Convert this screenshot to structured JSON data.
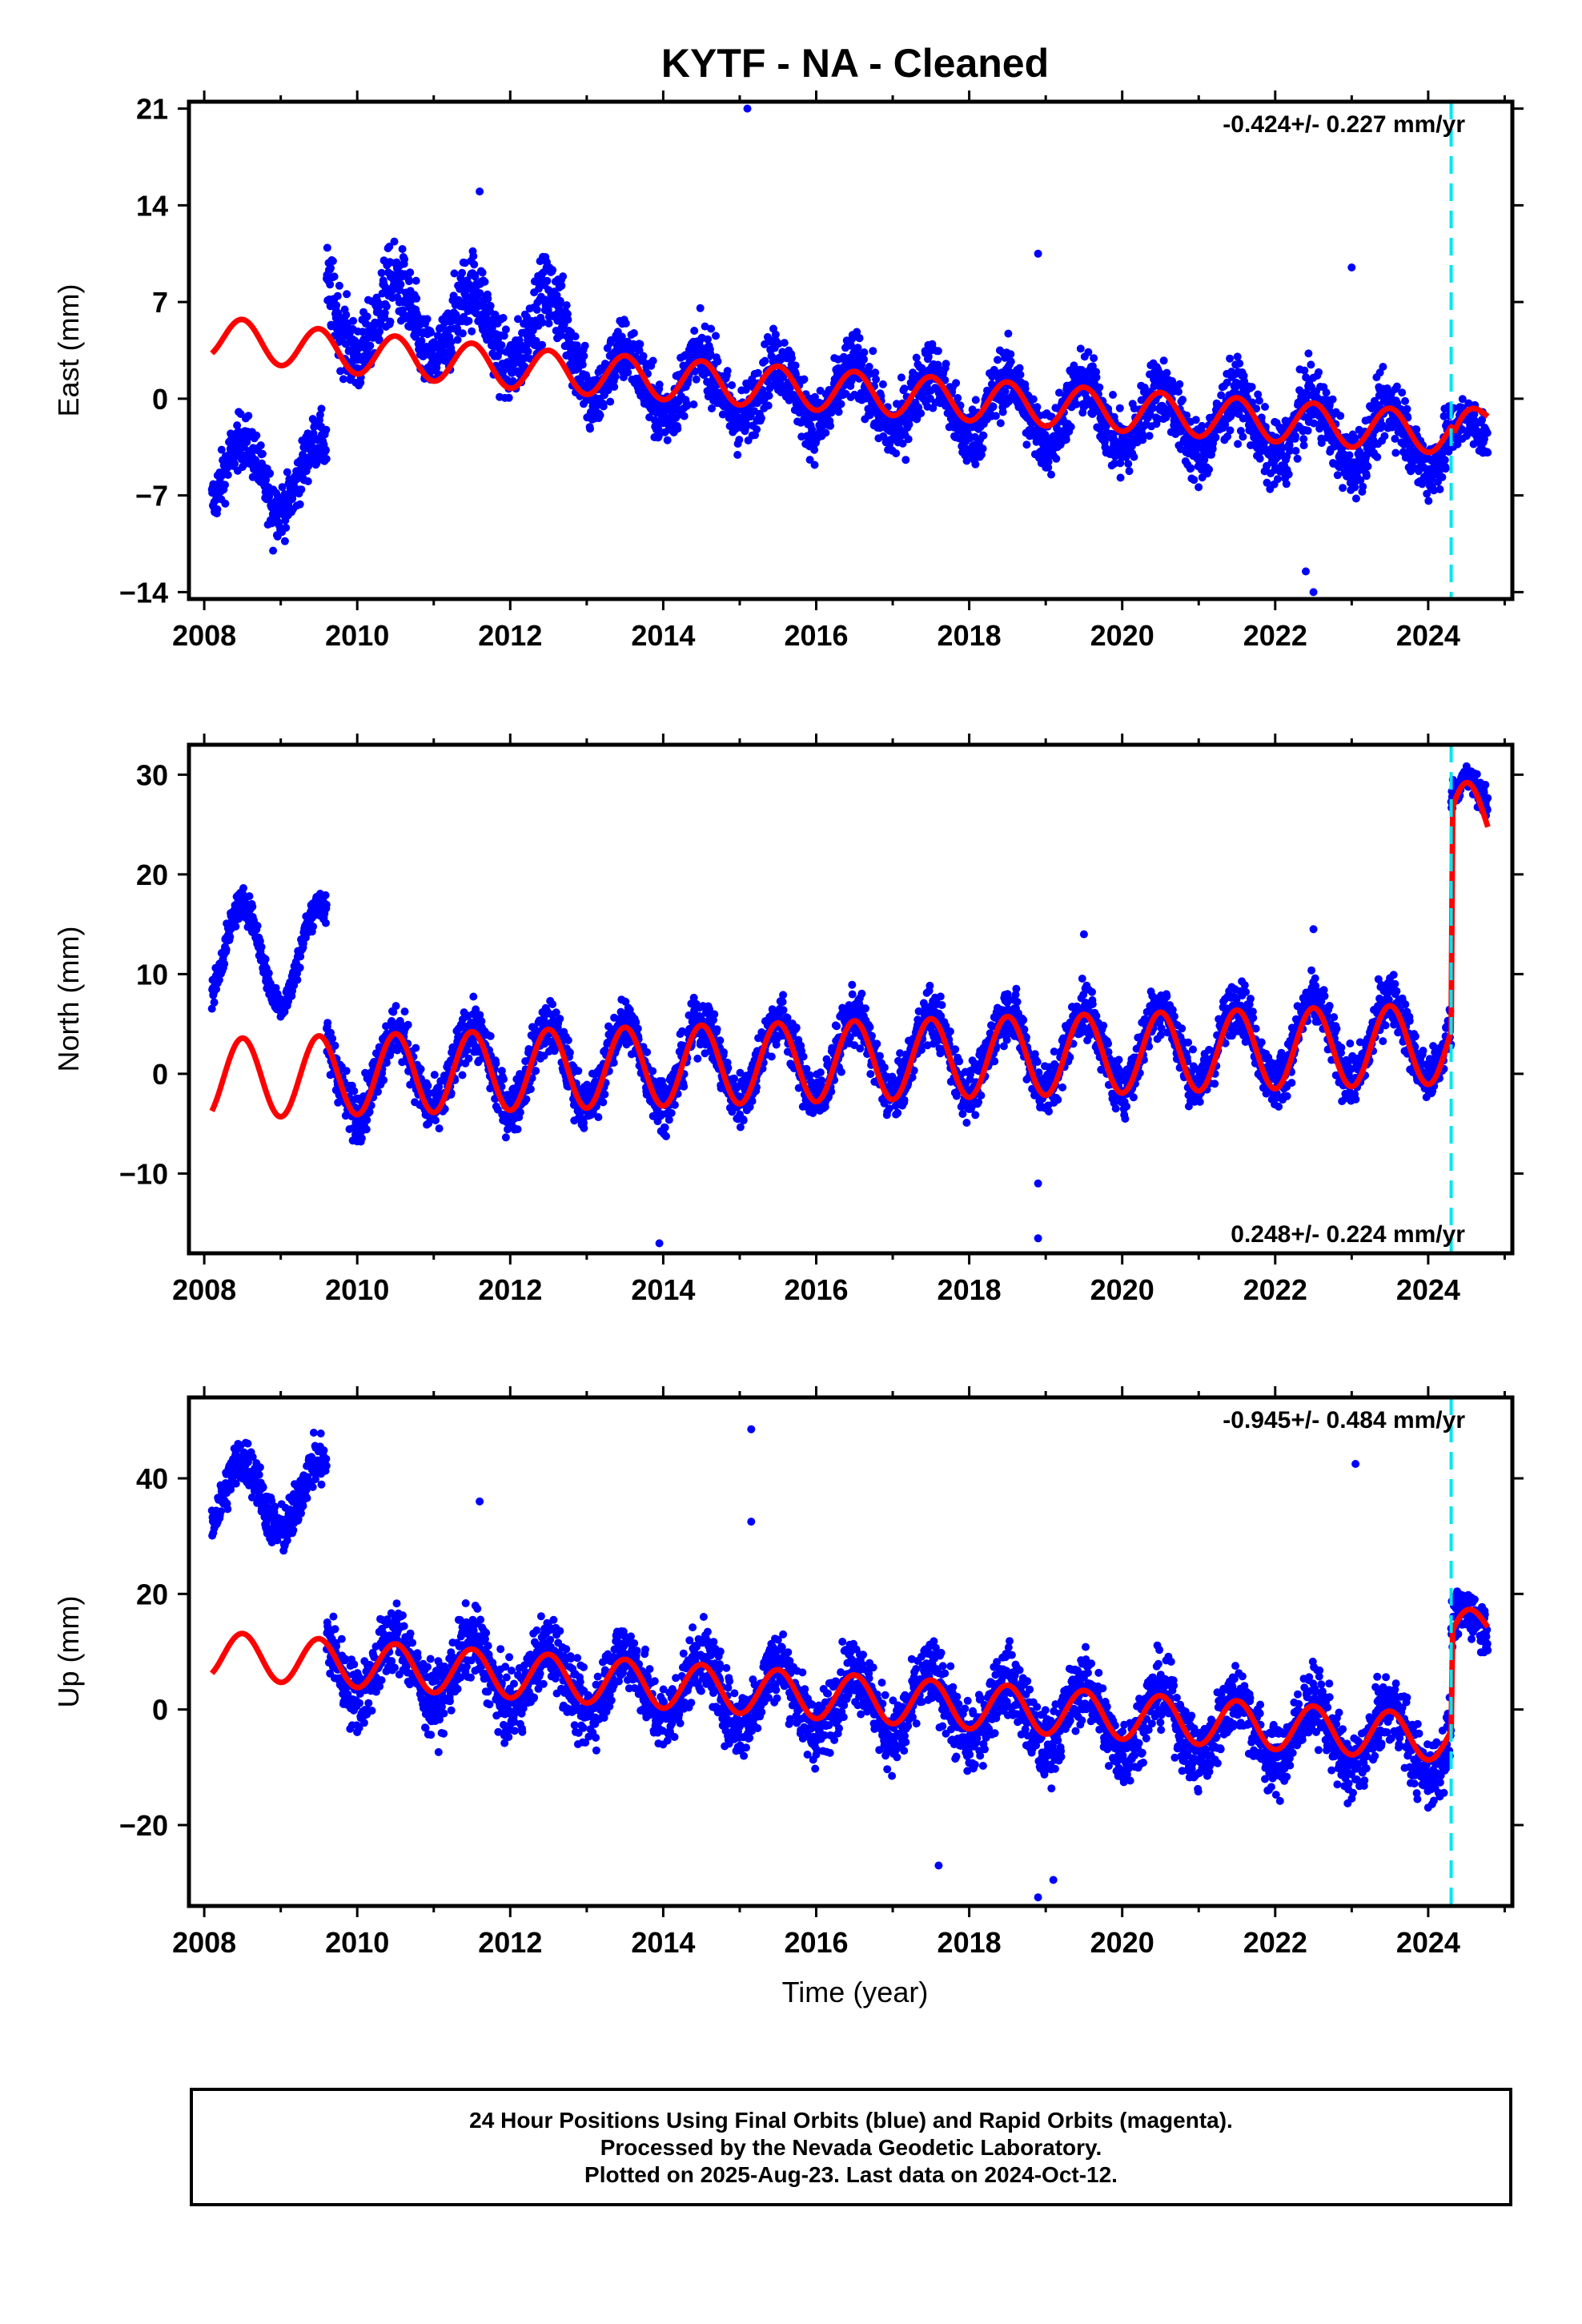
{
  "title": "KYTF  - NA - Cleaned",
  "colors": {
    "data": "#0000ff",
    "model": "#ff0000",
    "event_line": "#00e5ee",
    "frame": "#000000"
  },
  "footer": {
    "line1": "24 Hour Positions Using Final Orbits (blue) and Rapid Orbits (magenta).",
    "line2": "Processed by the Nevada Geodetic Laboratory.",
    "line3": "Plotted on 2025-Aug-23. Last data on 2024-Oct-12."
  },
  "chart_data": [
    {
      "type": "scatter",
      "component": "East",
      "ylabel": "East (mm)",
      "xlabel": "",
      "xlim": [
        2007.8,
        2025.1
      ],
      "ylim": [
        -14.5,
        21.5
      ],
      "xticks": [
        2008,
        2010,
        2012,
        2014,
        2016,
        2018,
        2020,
        2022,
        2024
      ],
      "xtick_labels": [
        "2008",
        "2010",
        "2012",
        "2014",
        "2016",
        "2018",
        "2020",
        "2022",
        "2024"
      ],
      "yticks": [
        -14,
        -7,
        0,
        7,
        14,
        21
      ],
      "ytick_labels": [
        "−14",
        "−7",
        "0",
        "7",
        "14",
        "21"
      ],
      "rate_text": "-0.424+/- 0.227 mm/yr",
      "rate_position": "top-right",
      "event_line_x": 2024.3,
      "data_start": 2008.1,
      "data_end": 2024.78,
      "series": [
        {
          "kind": "points",
          "segments": [
            {
              "from": 2008.1,
              "to": 2009.6,
              "base": -5.5,
              "slope": 0,
              "amp": 2.5,
              "noise": 1.6
            },
            {
              "from": 2009.6,
              "to": 2013.0,
              "base": 6.0,
              "slope": -0.4,
              "amp": 2.8,
              "noise": 2.3
            },
            {
              "from": 2013.0,
              "to": 2024.3,
              "base": 1.5,
              "slope": -0.4,
              "amp": 2.2,
              "noise": 2.0
            },
            {
              "from": 2024.3,
              "to": 2024.78,
              "base": -3.0,
              "slope": 0,
              "amp": 1.5,
              "noise": 1.5
            }
          ],
          "outliers": [
            [
              2015.1,
              21.0
            ],
            [
              2011.6,
              15.0
            ],
            [
              2018.9,
              10.5
            ],
            [
              2023.0,
              9.5
            ],
            [
              2022.5,
              -14.0
            ],
            [
              2008.9,
              -11.0
            ],
            [
              2022.4,
              -12.5
            ]
          ]
        },
        {
          "kind": "model",
          "points": [
            [
              2008.1,
              4.5
            ],
            [
              2009.6,
              3.5
            ],
            [
              2012.5,
              2.0
            ],
            [
              2024.3,
              -2.5
            ],
            [
              2024.35,
              -3.2
            ],
            [
              2024.78,
              -1.0
            ]
          ],
          "amp": 1.5
        }
      ]
    },
    {
      "type": "scatter",
      "component": "North",
      "ylabel": "North (mm)",
      "xlabel": "",
      "xlim": [
        2007.8,
        2025.1
      ],
      "ylim": [
        -18,
        33
      ],
      "xticks": [
        2008,
        2010,
        2012,
        2014,
        2016,
        2018,
        2020,
        2022,
        2024
      ],
      "xtick_labels": [
        "2008",
        "2010",
        "2012",
        "2014",
        "2016",
        "2018",
        "2020",
        "2022",
        "2024"
      ],
      "yticks": [
        -10,
        0,
        10,
        20,
        30
      ],
      "ytick_labels": [
        "−10",
        "0",
        "10",
        "20",
        "30"
      ],
      "rate_text": "0.248+/- 0.224 mm/yr",
      "rate_position": "bottom-right",
      "event_line_x": 2024.3,
      "data_start": 2008.1,
      "data_end": 2024.78,
      "series": [
        {
          "kind": "points",
          "segments": [
            {
              "from": 2008.1,
              "to": 2009.6,
              "base": 12.0,
              "slope": 0,
              "amp": 5.0,
              "noise": 1.2
            },
            {
              "from": 2009.6,
              "to": 2024.3,
              "base": 0.0,
              "slope": 0.25,
              "amp": 4.0,
              "noise": 2.2
            },
            {
              "from": 2024.3,
              "to": 2024.78,
              "base": 27.0,
              "slope": 0,
              "amp": 2.5,
              "noise": 1.2
            }
          ],
          "outliers": [
            [
              2013.95,
              -17.0
            ],
            [
              2018.9,
              -16.5
            ],
            [
              2019.5,
              14.0
            ],
            [
              2022.5,
              14.5
            ],
            [
              2018.9,
              -11.0
            ]
          ]
        },
        {
          "kind": "model",
          "points": [
            [
              2008.1,
              -0.5
            ],
            [
              2024.3,
              3.0
            ],
            [
              2024.32,
              25.0
            ],
            [
              2024.78,
              25.5
            ]
          ],
          "amp": 4.0
        }
      ]
    },
    {
      "type": "scatter",
      "component": "Up",
      "ylabel": "Up (mm)",
      "xlabel": "Time (year)",
      "xlim": [
        2007.8,
        2025.1
      ],
      "ylim": [
        -34,
        54
      ],
      "xticks": [
        2008,
        2010,
        2012,
        2014,
        2016,
        2018,
        2020,
        2022,
        2024
      ],
      "xtick_labels": [
        "2008",
        "2010",
        "2012",
        "2014",
        "2016",
        "2018",
        "2020",
        "2022",
        "2024"
      ],
      "yticks": [
        -20,
        0,
        20,
        40
      ],
      "ytick_labels": [
        "−20",
        "0",
        "20",
        "40"
      ],
      "rate_text": "-0.945+/- 0.484 mm/yr",
      "rate_position": "top-right",
      "event_line_x": 2024.3,
      "data_start": 2008.1,
      "data_end": 2024.78,
      "series": [
        {
          "kind": "points",
          "segments": [
            {
              "from": 2008.1,
              "to": 2009.6,
              "base": 37.0,
              "slope": 0,
              "amp": 6.0,
              "noise": 3.5
            },
            {
              "from": 2009.6,
              "to": 2024.3,
              "base": 8.0,
              "slope": -0.95,
              "amp": 5.5,
              "noise": 5.0
            },
            {
              "from": 2024.3,
              "to": 2024.78,
              "base": 14.0,
              "slope": 0,
              "amp": 3.0,
              "noise": 3.5
            }
          ],
          "outliers": [
            [
              2015.15,
              48.5
            ],
            [
              2015.15,
              32.5
            ],
            [
              2023.05,
              42.5
            ],
            [
              2018.9,
              -32.5
            ],
            [
              2019.1,
              -29.5
            ],
            [
              2017.6,
              -27.0
            ],
            [
              2011.6,
              36.0
            ]
          ]
        },
        {
          "kind": "model",
          "points": [
            [
              2008.1,
              9.5
            ],
            [
              2024.3,
              -5.0
            ],
            [
              2024.32,
              12.0
            ],
            [
              2024.78,
              15.0
            ]
          ],
          "amp": 4.0
        }
      ]
    }
  ]
}
